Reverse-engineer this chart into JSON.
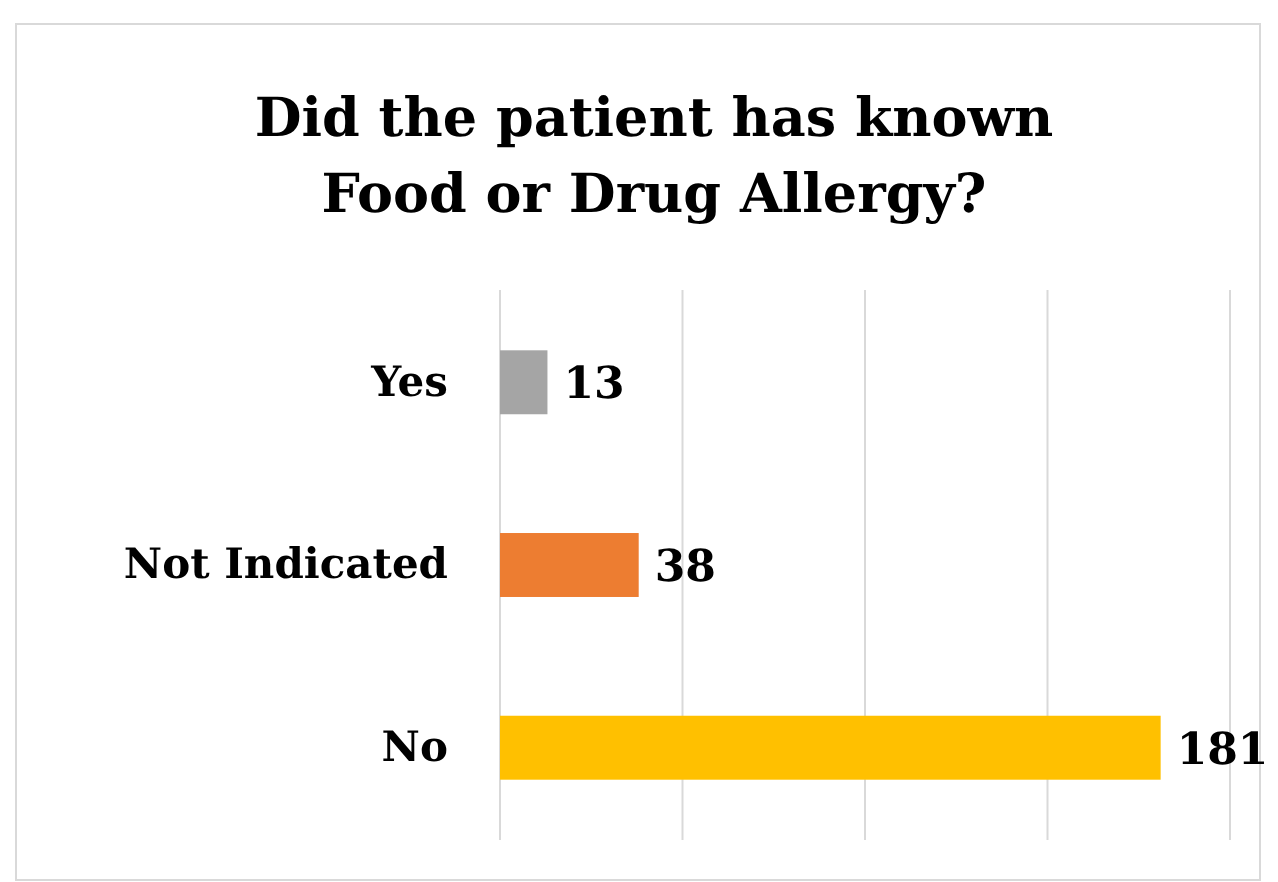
{
  "chart_data": {
    "type": "bar",
    "orientation": "horizontal",
    "title": "Did the patient has known Food or Drug Allergy?",
    "categories": [
      "Yes",
      "Not Indicated",
      "No"
    ],
    "values": [
      13,
      38,
      181
    ],
    "colors": [
      "#a5a5a5",
      "#ed7d31",
      "#ffc000"
    ],
    "xlim": [
      0,
      200
    ],
    "xticks": [
      {
        "value": 0,
        "label": null
      },
      {
        "value": 50,
        "label": null
      },
      {
        "value": 100,
        "label": null
      },
      {
        "value": 150,
        "label": null
      },
      {
        "value": 200,
        "label": null
      }
    ],
    "grid": "x",
    "tick_labels": "y",
    "data_labels": true
  }
}
